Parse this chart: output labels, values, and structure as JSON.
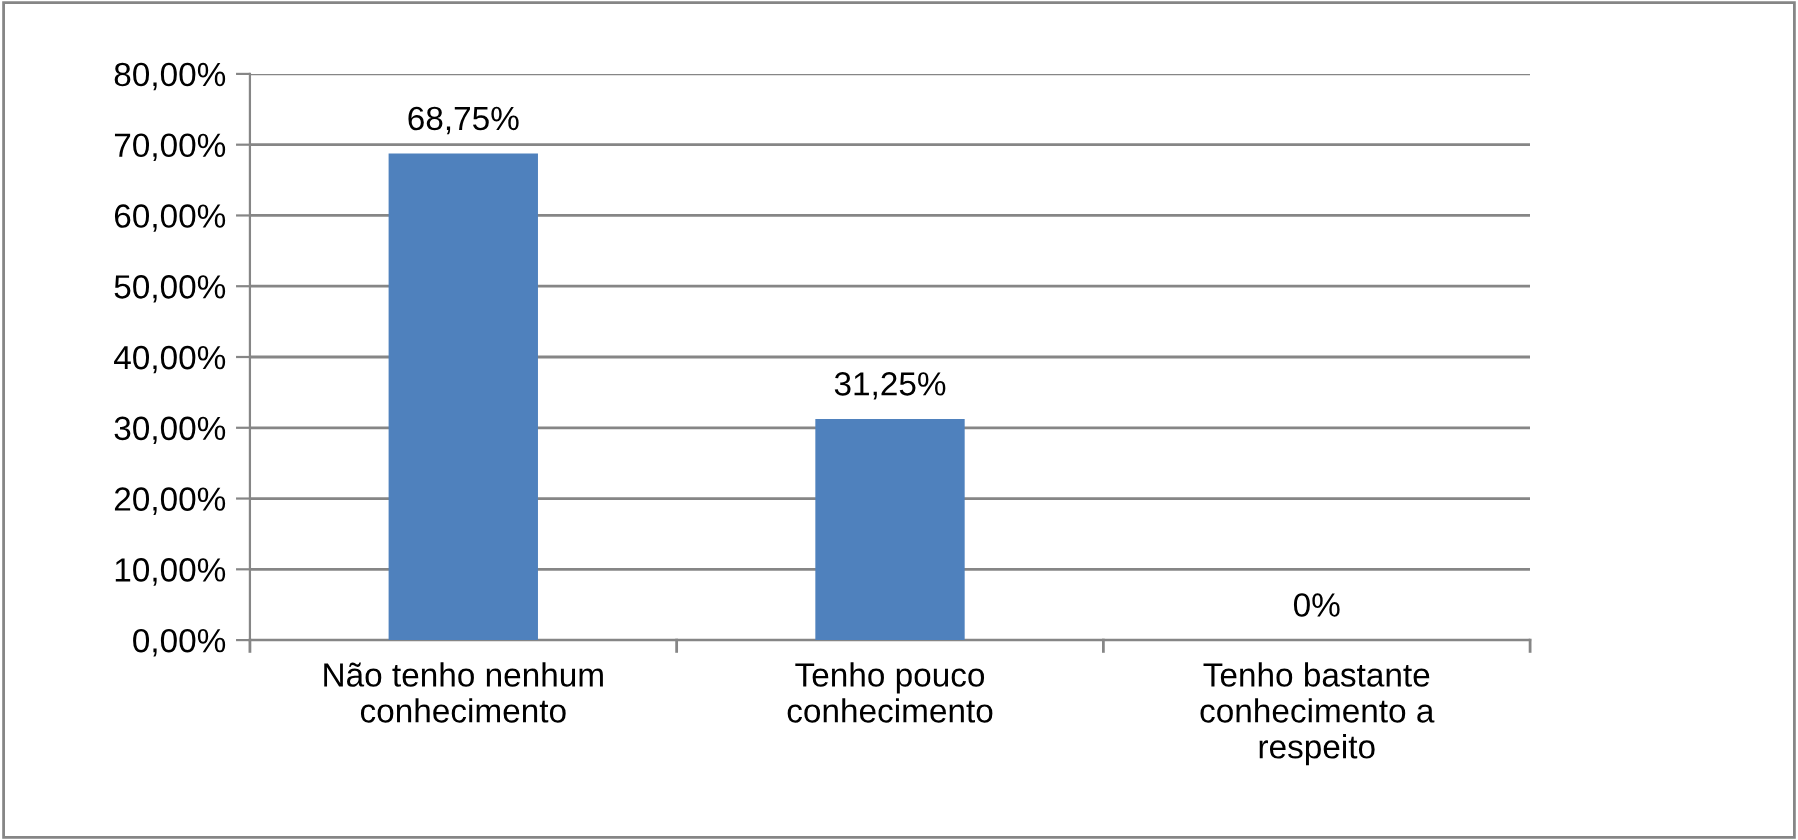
{
  "chart_data": {
    "type": "bar",
    "categories": [
      "Não tenho nenhum\nconhecimento",
      "Tenho pouco\nconhecimento",
      "Tenho bastante\nconhecimento a\nrespeito"
    ],
    "values": [
      68.75,
      31.25,
      0
    ],
    "value_labels": [
      "68,75%",
      "31,25%",
      "0%"
    ],
    "color": "#4f81bd",
    "ylim": [
      0,
      80
    ],
    "yticks": [
      {
        "value": 0,
        "label": "0,00%"
      },
      {
        "value": 10,
        "label": "10,00%"
      },
      {
        "value": 20,
        "label": "20,00%"
      },
      {
        "value": 30,
        "label": "30,00%"
      },
      {
        "value": 40,
        "label": "40,00%"
      },
      {
        "value": 50,
        "label": "50,00%"
      },
      {
        "value": 60,
        "label": "60,00%"
      },
      {
        "value": 70,
        "label": "70,00%"
      },
      {
        "value": 80,
        "label": "80,00%"
      }
    ],
    "grid": "y"
  }
}
